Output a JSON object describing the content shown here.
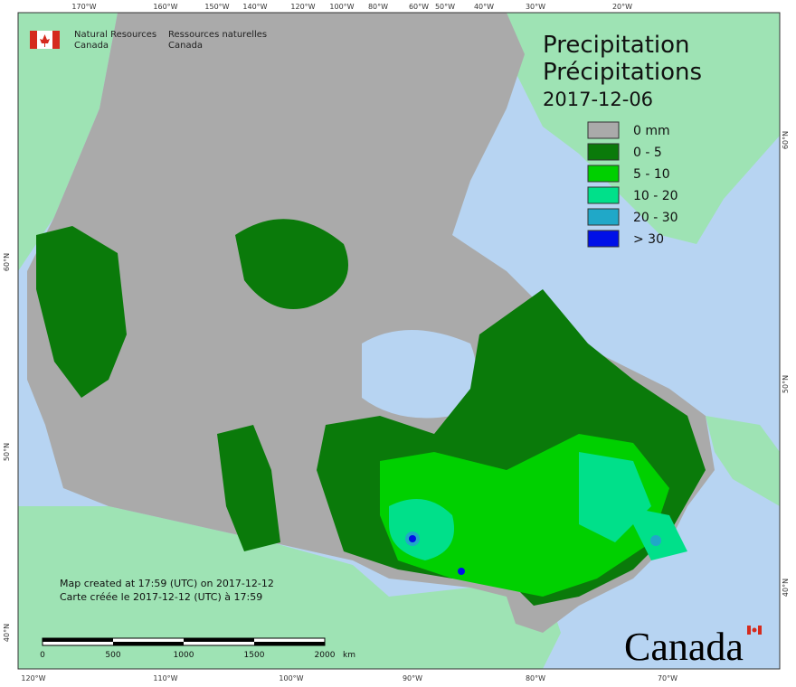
{
  "header": {
    "agency_en": "Natural Resources\nCanada",
    "agency_fr": "Ressources naturelles\nCanada"
  },
  "title": {
    "line1": "Precipitation",
    "line2": "Précipitations",
    "date": "2017-12-06"
  },
  "legend": {
    "items": [
      {
        "label": "0 mm",
        "color": "#aaaaaa"
      },
      {
        "label": "0 - 5",
        "color": "#0a7a0a"
      },
      {
        "label": "5 - 10",
        "color": "#00d000"
      },
      {
        "label": "10 - 20",
        "color": "#00e08a"
      },
      {
        "label": "20 - 30",
        "color": "#20a8c8"
      },
      {
        "label": "> 30",
        "color": "#0010e8"
      }
    ]
  },
  "notes": {
    "created_en": "Map created at 17:59 (UTC) on 2017-12-12",
    "created_fr": "Carte créée le 2017-12-12 (UTC) à 17:59"
  },
  "scale": {
    "ticks": [
      0,
      500,
      1000,
      1500,
      2000
    ],
    "unit": "km"
  },
  "graticule": {
    "top": [
      "170°W",
      "160°W",
      "150°W",
      "140°W",
      "120°W",
      "100°W",
      "80°W",
      "60°W",
      "50°W",
      "40°W",
      "30°W",
      "20°W"
    ],
    "bottom": [
      "120°W",
      "110°W",
      "100°W",
      "90°W",
      "80°W",
      "70°W"
    ],
    "left": [
      "60°N",
      "50°N",
      "40°N"
    ],
    "right": [
      "60°N",
      "50°N",
      "40°N"
    ]
  },
  "wordmark": "Canada"
}
